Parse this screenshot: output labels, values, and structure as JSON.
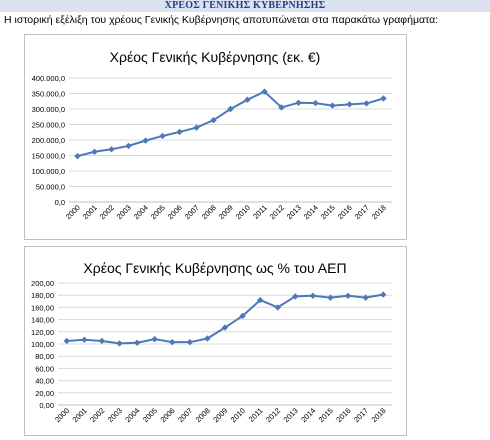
{
  "header": {
    "title": "ΧΡΕΟΣ ΓΕΝΙΚΗΣ ΚΥΒΕΡΝΗΣΗΣ"
  },
  "intro": {
    "text": "Η ιστορική εξέλιξη του χρέους Γενικής Κυβέρνησης αποτυπώνεται στα παρακάτω γραφήματα:"
  },
  "colors": {
    "line": "#4f78b8",
    "marker": "#4f78b8",
    "grid": "#d9d9d9",
    "header_bg": "#dbe3f0",
    "header_text": "#1f3d8a"
  },
  "chart_data": [
    {
      "type": "line",
      "title": "Χρέος Γενικής Κυβέρνησης (εκ. €)",
      "categories": [
        "2000",
        "2001",
        "2002",
        "2003",
        "2004",
        "2005",
        "2006",
        "2007",
        "2008",
        "2009",
        "2010",
        "2011",
        "2012",
        "2013",
        "2014",
        "2015",
        "2016",
        "2017",
        "2018"
      ],
      "values": [
        148000,
        162000,
        170000,
        181000,
        198000,
        213000,
        226000,
        240000,
        264000,
        300000,
        330000,
        356000,
        305000,
        320000,
        319000,
        311000,
        315000,
        318000,
        334000
      ],
      "ylim": [
        0,
        400000
      ],
      "yticks": [
        "0,0",
        "50.000,0",
        "100.000,0",
        "150.000,0",
        "200.000,0",
        "250.000,0",
        "300.000,0",
        "350.000,0",
        "400.000,0"
      ],
      "grid": true,
      "legend": "none"
    },
    {
      "type": "line",
      "title": "Χρέος Γενικής Κυβέρνησης ως % του ΑΕΠ",
      "categories": [
        "2000",
        "2001",
        "2002",
        "2003",
        "2004",
        "2005",
        "2006",
        "2007",
        "2008",
        "2009",
        "2010",
        "2011",
        "2012",
        "2013",
        "2014",
        "2015",
        "2016",
        "2017",
        "2018"
      ],
      "values": [
        105,
        107,
        105,
        101,
        102,
        108,
        103,
        103,
        109,
        127,
        146,
        172,
        160,
        178,
        179,
        176,
        179,
        176,
        181
      ],
      "ylim": [
        0,
        200
      ],
      "yticks": [
        "0,00",
        "20,00",
        "40,00",
        "60,00",
        "80,00",
        "100,00",
        "120,00",
        "140,00",
        "160,00",
        "180,00",
        "200,00"
      ],
      "grid": true,
      "legend": "none"
    }
  ]
}
